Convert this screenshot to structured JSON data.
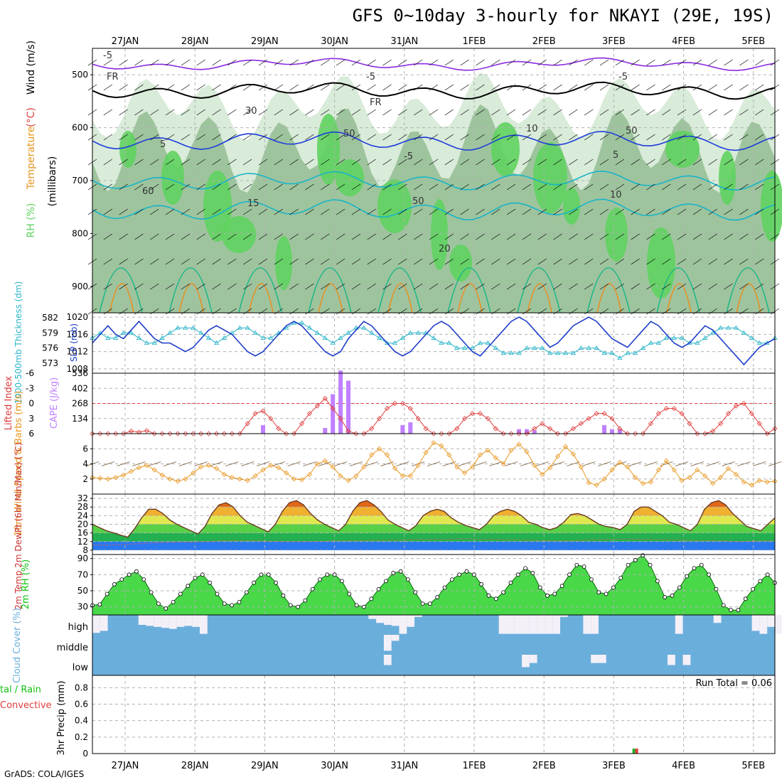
{
  "title": "GFS 0~10day 3-hourly for NKAYI (29E, 19S)",
  "footer": "GrADS: COLA/IGES",
  "run_total": "Run Total = 0.06",
  "colors": {
    "grid": "#b0b0b0",
    "rh_dark": "#5fd35f",
    "rh_mid": "#9ec49e",
    "rh_light": "#d9ebd9",
    "temp_purple": "#8a2be2",
    "temp_blue": "#1e3cdc",
    "temp_teal": "#18b4c8",
    "temp_green": "#20b888",
    "temp_orange": "#e89020",
    "slp": "#1e3cc8",
    "thick": "#28b4c8",
    "lifted": "#e03c3c",
    "cape": "#c080ff",
    "wind": "#e8961e",
    "barb": "#7a5a3a",
    "rh2m": "#10c010",
    "cloud": "#6aaedc",
    "cloud_clear": "#f4f0f8"
  },
  "chart_data": [
    {
      "type": "heatmap",
      "name": "upper",
      "left_label_parts": [
        "RH (%)",
        "Temperature",
        "(°C)",
        "Wind (m/s)"
      ],
      "ylabel": "(millibars)",
      "x_ticks": [
        "27JAN",
        "28JAN",
        "29JAN",
        "30JAN",
        "31JAN",
        "1FEB",
        "2FEB",
        "3FEB",
        "4FEB",
        "5FEB"
      ],
      "y_ticks": [
        500,
        600,
        700,
        800,
        900
      ],
      "ylim": [
        450,
        950
      ],
      "contour_labels": [
        "-5",
        "-5",
        "-5",
        "FR",
        "FR",
        "5",
        "-5",
        "5",
        "10",
        "15",
        "20",
        "30",
        "50",
        "50",
        "60",
        "10",
        "50"
      ]
    },
    {
      "type": "line",
      "name": "slp_thickness",
      "left_label": "1000-500mb Thickness (dm)",
      "right_label": "SLP (mb)",
      "thick_ticks": [
        582,
        579,
        576,
        573
      ],
      "thick_range": [
        571,
        583
      ],
      "slp_ticks": [
        1020,
        1016,
        1012,
        1008
      ],
      "slp_range": [
        1007,
        1021
      ],
      "slp_values": [
        1014,
        1016,
        1018,
        1016,
        1015,
        1017,
        1019,
        1017,
        1015,
        1014,
        1014,
        1013,
        1012,
        1013,
        1015,
        1017,
        1018,
        1017,
        1016,
        1014,
        1012,
        1011,
        1012,
        1014,
        1016,
        1018,
        1019,
        1018,
        1016,
        1014,
        1012,
        1011,
        1012,
        1015,
        1017,
        1019,
        1018,
        1016,
        1014,
        1012,
        1011,
        1012,
        1014,
        1016,
        1018,
        1019,
        1018,
        1016,
        1014,
        1012,
        1011,
        1013,
        1015,
        1017,
        1019,
        1020,
        1019,
        1017,
        1015,
        1013,
        1014,
        1016,
        1018,
        1019,
        1020,
        1019,
        1017,
        1015,
        1014,
        1013,
        1015,
        1017,
        1019,
        1018,
        1016,
        1014,
        1013,
        1014,
        1016,
        1018,
        1017,
        1015,
        1013,
        1011,
        1009,
        1011,
        1013,
        1014,
        1015
      ],
      "thick_values": [
        578,
        579,
        578,
        578,
        579,
        579,
        578,
        577,
        577,
        578,
        579,
        580,
        580,
        580,
        579,
        578,
        577,
        578,
        579,
        580,
        580,
        579,
        578,
        578,
        579,
        580,
        581,
        581,
        580,
        579,
        578,
        577,
        578,
        579,
        580,
        580,
        579,
        578,
        577,
        577,
        578,
        579,
        579,
        579,
        578,
        577,
        577,
        576,
        576,
        576,
        577,
        577,
        576,
        575,
        575,
        575,
        576,
        576,
        576,
        575,
        575,
        575,
        575,
        576,
        576,
        576,
        575,
        575,
        574,
        575,
        575,
        576,
        577,
        577,
        578,
        578,
        578,
        577,
        577,
        578,
        579,
        580,
        580,
        580,
        579,
        578,
        577,
        577,
        578
      ]
    },
    {
      "type": "bar",
      "name": "lifted_cape",
      "left_label": "Lifted Index",
      "right_label": "CAPE (J/kg)",
      "li_ticks": [
        "-6",
        "-3",
        "0",
        "3",
        "6"
      ],
      "cape_ticks": [
        536,
        402,
        268,
        134
      ],
      "cape_max": 536,
      "li_values": [
        6,
        6,
        6,
        6,
        6,
        5.5,
        5.7,
        5.4,
        6,
        6,
        6,
        6,
        6,
        6,
        6,
        6,
        6,
        6,
        6,
        6,
        4,
        2,
        1.5,
        3,
        5,
        6,
        6,
        4,
        2,
        0.5,
        -1,
        1,
        3,
        5.5,
        6,
        6,
        5,
        3,
        1,
        0,
        0,
        1,
        3,
        5,
        6,
        6,
        6,
        5,
        3,
        2,
        2,
        3,
        5,
        6,
        6,
        6,
        6,
        5,
        4,
        5,
        6,
        6,
        5,
        4,
        3,
        2,
        2,
        3,
        5,
        6,
        6,
        6,
        4,
        2,
        1,
        1,
        2,
        4,
        6,
        6,
        5.5,
        4,
        2,
        0.5,
        0,
        2,
        4,
        6,
        5
      ],
      "cape_values": [
        0,
        0,
        0,
        0,
        0,
        0,
        0,
        0,
        0,
        0,
        0,
        0,
        0,
        0,
        0,
        0,
        0,
        0,
        0,
        0,
        0,
        0,
        75,
        0,
        0,
        0,
        0,
        0,
        0,
        0,
        50,
        350,
        560,
        470,
        0,
        0,
        0,
        0,
        0,
        0,
        75,
        100,
        0,
        0,
        0,
        0,
        0,
        0,
        0,
        0,
        0,
        0,
        0,
        0,
        0,
        40,
        40,
        30,
        0,
        0,
        0,
        0,
        0,
        0,
        0,
        0,
        75,
        40,
        40,
        0,
        0,
        0,
        0,
        0,
        0,
        0,
        0,
        0,
        0,
        0,
        0,
        0,
        0,
        0,
        0,
        0,
        0,
        0,
        0
      ]
    },
    {
      "type": "line",
      "name": "wind10m",
      "left_label": "10m Wind Speed & Barbs (m/s)",
      "y_ticks": [
        2,
        4,
        6
      ],
      "ylim": [
        0,
        8
      ],
      "values": [
        2.2,
        2.1,
        2,
        2.2,
        2.5,
        3,
        3.5,
        3.8,
        3.2,
        2.5,
        2,
        1.7,
        2,
        2.8,
        3.6,
        3.8,
        3.4,
        2.6,
        2.2,
        2,
        1.8,
        2.4,
        3.2,
        3.8,
        3.5,
        2.8,
        2,
        1.9,
        2.6,
        4,
        4.4,
        3.6,
        2.4,
        1.8,
        2.4,
        3.6,
        5.2,
        6,
        5.2,
        3.4,
        2.4,
        2.4,
        3.8,
        5.5,
        6.8,
        6.4,
        5.2,
        3.6,
        2.8,
        3.6,
        5.2,
        5.8,
        4.8,
        4,
        5.8,
        6.6,
        5.6,
        3.8,
        2.6,
        3.5,
        5,
        6.3,
        5.3,
        3.6,
        1.5,
        1.2,
        2,
        3.2,
        4.2,
        3.6,
        2.2,
        1.4,
        1.6,
        3.2,
        4.4,
        3.2,
        1.8,
        2.2,
        3.2,
        2.4,
        1.4,
        2.2,
        3.4,
        2.6,
        1.6,
        1.2,
        1.8,
        1.6,
        1.7
      ]
    },
    {
      "type": "area",
      "name": "temp2m",
      "left_label": "2m Temp 2m DewPt (6hr Min/Max) (°C)",
      "y_ticks": [
        32,
        28,
        24,
        20,
        16,
        12,
        8
      ],
      "ylim": [
        6,
        34
      ],
      "temp_values": [
        20,
        18.5,
        17,
        16,
        15,
        14,
        18,
        23,
        27,
        27,
        25,
        22,
        20,
        18.5,
        17,
        15.5,
        19,
        25,
        29,
        30,
        28,
        24,
        21,
        19.5,
        18,
        16.5,
        20,
        26,
        30,
        31,
        29,
        25,
        22,
        20,
        18.5,
        17,
        20,
        26,
        30,
        31,
        29,
        26,
        22,
        20,
        18.5,
        17,
        19.5,
        24,
        26,
        27,
        26,
        23,
        21,
        19.5,
        18.5,
        17.5,
        20,
        24,
        26,
        27,
        26,
        24,
        21,
        20,
        18.5,
        17.5,
        18.5,
        21,
        24.5,
        25,
        24,
        22,
        20,
        19,
        18.5,
        17.5,
        20,
        26,
        28,
        28,
        26,
        24,
        21,
        20,
        18.5,
        17,
        20,
        27,
        30,
        31,
        29,
        25,
        22,
        19,
        18,
        17,
        20,
        23
      ],
      "dew_values": [
        10.5,
        10.4,
        10.3,
        10.5,
        10.6,
        10.8,
        11,
        11.2,
        11.4,
        11.5,
        11.6,
        11.8,
        11.7,
        11.8,
        11.9,
        12,
        12.2,
        12.4,
        12.5,
        12.5,
        12.4,
        12.4,
        12.2,
        12.2,
        12.1,
        12,
        12,
        12,
        12.1,
        12.1,
        12.2,
        12.3,
        12.3,
        12.4,
        12.4,
        12.4,
        12.6,
        12.6,
        12.6,
        12.7,
        12.8,
        12.9,
        13,
        13,
        13,
        13.1,
        13.1,
        13.2,
        13.3,
        13.2,
        13.1,
        13.1,
        13,
        12.9,
        12.8,
        12.8,
        12.6,
        12.6,
        12.4,
        12.4,
        12.3,
        12.3,
        12.4,
        12.6,
        12.8,
        12.9,
        13,
        13,
        13.2,
        13.2,
        13.1,
        13,
        13,
        13,
        12.9,
        12.8,
        12.8,
        12.6,
        12.5,
        12.5,
        12.4,
        12.3,
        12.2,
        12,
        12.1,
        12.2,
        12.3,
        12.4,
        12.5
      ]
    },
    {
      "type": "area",
      "name": "rh2m",
      "left_label": "2m RH (%)",
      "y_ticks": [
        90,
        70,
        50,
        30
      ],
      "ylim": [
        20,
        95
      ],
      "values": [
        32,
        33,
        46,
        58,
        64,
        70,
        74,
        64,
        48,
        34,
        28,
        36,
        46,
        56,
        66,
        70,
        60,
        46,
        34,
        32,
        36,
        48,
        60,
        70,
        70,
        60,
        44,
        32,
        30,
        38,
        52,
        64,
        70,
        70,
        62,
        46,
        32,
        30,
        40,
        52,
        62,
        72,
        74,
        64,
        48,
        34,
        34,
        42,
        54,
        64,
        70,
        74,
        70,
        58,
        44,
        40,
        48,
        60,
        70,
        78,
        72,
        54,
        44,
        46,
        56,
        70,
        82,
        80,
        64,
        48,
        46,
        54,
        66,
        82,
        88,
        94,
        82,
        62,
        42,
        44,
        54,
        68,
        78,
        82,
        70,
        52,
        32,
        26,
        26,
        40,
        52,
        62,
        70,
        60
      ]
    },
    {
      "type": "bar",
      "name": "cloud_cover",
      "left_label": "Cloud Cover (%)",
      "level_labels": [
        "high",
        "middle",
        "low"
      ],
      "high_values": [
        90,
        80,
        0,
        0,
        0,
        0,
        50,
        55,
        60,
        65,
        70,
        60,
        55,
        60,
        95,
        0,
        0,
        0,
        0,
        0,
        0,
        0,
        0,
        0,
        0,
        0,
        0,
        0,
        0,
        0,
        0,
        0,
        0,
        0,
        0,
        0,
        20,
        40,
        50,
        55,
        95,
        60,
        10,
        0,
        0,
        0,
        0,
        0,
        0,
        0,
        0,
        0,
        0,
        95,
        95,
        95,
        95,
        95,
        95,
        95,
        95,
        10,
        0,
        0,
        95,
        95,
        0,
        0,
        0,
        0,
        0,
        0,
        0,
        0,
        0,
        0,
        95,
        0,
        0,
        0,
        0,
        40,
        0,
        0,
        0,
        0,
        80,
        95,
        60,
        95
      ],
      "middle_values": [
        0,
        0,
        0,
        0,
        0,
        0,
        0,
        0,
        0,
        0,
        0,
        0,
        0,
        0,
        0,
        0,
        0,
        0,
        0,
        0,
        0,
        0,
        0,
        0,
        0,
        0,
        0,
        0,
        0,
        0,
        0,
        0,
        0,
        0,
        0,
        0,
        0,
        0,
        80,
        30,
        0,
        0,
        0,
        0,
        0,
        0,
        0,
        0,
        0,
        0,
        0,
        0,
        0,
        0,
        0,
        0,
        0,
        0,
        0,
        0,
        0,
        0,
        0,
        0,
        0,
        0,
        0,
        0,
        0,
        0,
        0,
        0,
        0,
        0,
        0,
        0,
        0,
        0,
        0,
        0,
        0,
        0,
        0,
        0,
        0,
        0,
        0,
        0,
        0
      ],
      "low_values": [
        0,
        0,
        0,
        0,
        0,
        0,
        0,
        0,
        0,
        0,
        0,
        0,
        0,
        0,
        0,
        0,
        0,
        0,
        0,
        0,
        0,
        0,
        0,
        0,
        0,
        0,
        0,
        0,
        0,
        0,
        0,
        0,
        0,
        0,
        0,
        0,
        0,
        0,
        50,
        0,
        0,
        0,
        0,
        0,
        0,
        0,
        0,
        0,
        0,
        0,
        0,
        0,
        0,
        0,
        0,
        0,
        60,
        40,
        0,
        0,
        0,
        0,
        0,
        0,
        0,
        40,
        40,
        0,
        0,
        0,
        0,
        0,
        0,
        0,
        0,
        50,
        0,
        50,
        0,
        0,
        0,
        0,
        0,
        0,
        0,
        0,
        0,
        0,
        0
      ]
    },
    {
      "type": "bar",
      "name": "precip",
      "left_label_parts": [
        "tal / Rain",
        "Convective"
      ],
      "ylabel": "3hr Precip (mm)",
      "y_ticks": [
        "0",
        "0.2",
        "0.4",
        "0.6",
        "0.8"
      ],
      "ylim": [
        0,
        0.95
      ],
      "values": [
        0,
        0,
        0,
        0,
        0,
        0,
        0,
        0,
        0,
        0,
        0,
        0,
        0,
        0,
        0,
        0,
        0,
        0,
        0,
        0,
        0,
        0,
        0,
        0,
        0,
        0,
        0,
        0,
        0,
        0,
        0,
        0,
        0,
        0,
        0,
        0,
        0,
        0,
        0,
        0,
        0,
        0,
        0,
        0,
        0,
        0,
        0,
        0,
        0,
        0,
        0,
        0,
        0,
        0,
        0,
        0,
        0,
        0,
        0,
        0,
        0,
        0,
        0,
        0,
        0,
        0,
        0,
        0,
        0,
        0,
        0.06,
        0,
        0,
        0,
        0,
        0,
        0,
        0,
        0,
        0,
        0,
        0,
        0,
        0,
        0,
        0,
        0,
        0,
        0
      ]
    }
  ]
}
